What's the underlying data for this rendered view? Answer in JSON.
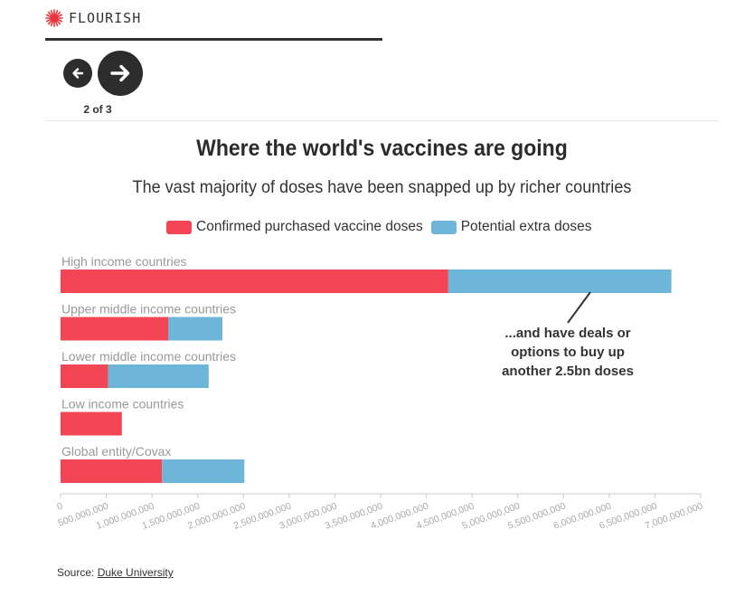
{
  "brand": {
    "name": "FLOURISH"
  },
  "navigation": {
    "page_indicator": "2 of 3",
    "prev_icon": "arrow-left-icon",
    "next_icon": "arrow-right-icon"
  },
  "header": {
    "title": "Where the world's vaccines are going",
    "subtitle": "The vast majority of doses have been snapped up by richer countries"
  },
  "legend": [
    {
      "label": "Confirmed purchased vaccine doses",
      "color": "#f24657"
    },
    {
      "label": "Potential extra doses",
      "color": "#6db6d9"
    }
  ],
  "chart_data": {
    "type": "bar",
    "orientation": "horizontal",
    "stacked": true,
    "categories": [
      "High income countries",
      "Upper middle income countries",
      "Lower middle income countries",
      "Low income countries",
      "Global entity/Covax"
    ],
    "series": [
      {
        "name": "Confirmed purchased vaccine doses",
        "color": "#f24657",
        "values": [
          4240000000,
          1180000000,
          520000000,
          670000000,
          1110000000
        ]
      },
      {
        "name": "Potential extra doses",
        "color": "#6db6d9",
        "values": [
          2440000000,
          590000000,
          1100000000,
          0,
          900000000
        ]
      }
    ],
    "xlim": [
      0,
      7000000000
    ],
    "x_ticks": [
      "0",
      "500,000,000",
      "1,000,000,000",
      "1,500,000,000",
      "2,000,000,000",
      "2,500,000,000",
      "3,000,000,000",
      "3,500,000,000",
      "4,000,000,000",
      "4,500,000,000",
      "5,000,000,000",
      "5,500,000,000",
      "6,000,000,000",
      "6,500,000,000",
      "7,000,000,000"
    ],
    "annotation": {
      "lines": [
        "...and have deals or",
        "options to buy up",
        "another 2.5bn doses"
      ],
      "target_category": "High income countries"
    },
    "grid": false
  },
  "source": {
    "prefix": "Source:",
    "link_text": "Duke University"
  }
}
